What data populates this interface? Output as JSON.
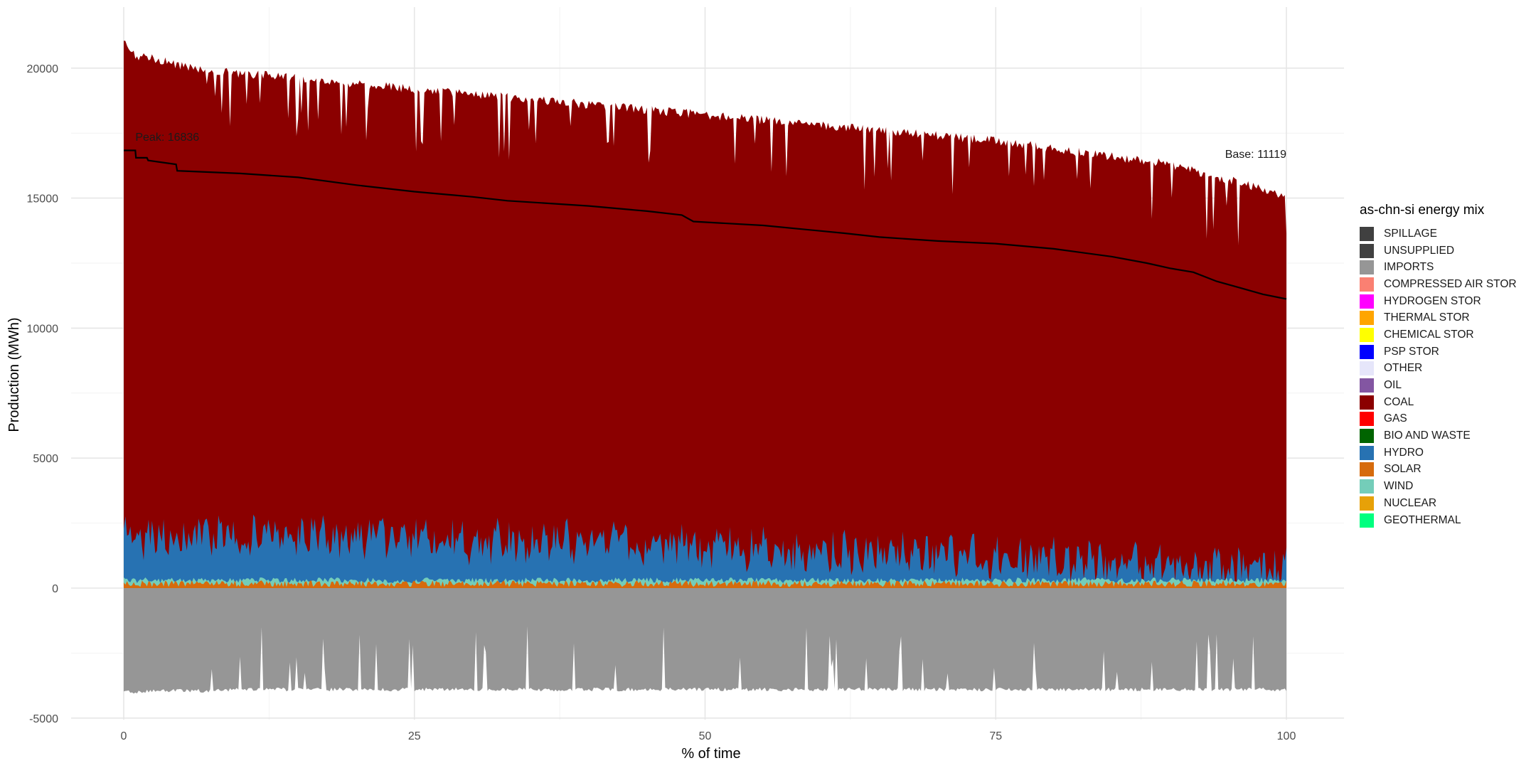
{
  "chart_data": {
    "type": "area",
    "title": "",
    "xlabel": "% of time",
    "ylabel": "Production (MWh)",
    "xlim": [
      0,
      100
    ],
    "ylim": [
      -5000,
      21500
    ],
    "x_ticks": [
      0,
      25,
      50,
      75,
      100
    ],
    "y_ticks": [
      -5000,
      0,
      5000,
      10000,
      15000,
      20000
    ],
    "grid": true,
    "legend_position": "right",
    "legend_title": "as-chn-si energy mix",
    "legend": [
      {
        "name": "SPILLAGE",
        "color": "#404040"
      },
      {
        "name": "UNSUPPLIED",
        "color": "#404040"
      },
      {
        "name": "IMPORTS",
        "color": "#969696"
      },
      {
        "name": "COMPRESSED AIR STOR",
        "color": "#FA8072"
      },
      {
        "name": "HYDROGEN STOR",
        "color": "#FF00FF"
      },
      {
        "name": "THERMAL STOR",
        "color": "#FFA500"
      },
      {
        "name": "CHEMICAL STOR",
        "color": "#FFFF00"
      },
      {
        "name": "PSP STOR",
        "color": "#0000FF"
      },
      {
        "name": "OTHER",
        "color": "#E6E6FA"
      },
      {
        "name": "OIL",
        "color": "#8356A2"
      },
      {
        "name": "COAL",
        "color": "#8B0000"
      },
      {
        "name": "GAS",
        "color": "#FF0000"
      },
      {
        "name": "BIO AND WASTE",
        "color": "#006400"
      },
      {
        "name": "HYDRO",
        "color": "#2772B2"
      },
      {
        "name": "SOLAR",
        "color": "#D66B0D"
      },
      {
        "name": "WIND",
        "color": "#74CDB9"
      },
      {
        "name": "NUCLEAR",
        "color": "#E7A108"
      },
      {
        "name": "GEOTHERMAL",
        "color": "#00FF7F"
      }
    ],
    "load_curve": {
      "color": "#000000",
      "points": [
        [
          0,
          16836
        ],
        [
          1,
          16836
        ],
        [
          1.05,
          16550
        ],
        [
          2,
          16550
        ],
        [
          2.1,
          16450
        ],
        [
          4.5,
          16300
        ],
        [
          4.6,
          16050
        ],
        [
          10,
          15950
        ],
        [
          15,
          15800
        ],
        [
          20,
          15500
        ],
        [
          25,
          15250
        ],
        [
          30,
          15050
        ],
        [
          33,
          14900
        ],
        [
          40,
          14700
        ],
        [
          45,
          14500
        ],
        [
          48,
          14350
        ],
        [
          49,
          14100
        ],
        [
          55,
          13950
        ],
        [
          62,
          13650
        ],
        [
          65,
          13500
        ],
        [
          70,
          13350
        ],
        [
          75,
          13250
        ],
        [
          80,
          13050
        ],
        [
          85,
          12750
        ],
        [
          88,
          12500
        ],
        [
          90,
          12300
        ],
        [
          92,
          12150
        ],
        [
          94,
          11800
        ],
        [
          96,
          11550
        ],
        [
          98,
          11300
        ],
        [
          100,
          11119
        ]
      ]
    },
    "stack_envelope": {
      "x": [
        0,
        0.5,
        1,
        3,
        5,
        8,
        10,
        16,
        20,
        25,
        30,
        35,
        40,
        45,
        50,
        55,
        60,
        65,
        70,
        75,
        80,
        85,
        90,
        95,
        100
      ],
      "coal_top": [
        21000,
        20700,
        20500,
        20300,
        20100,
        19900,
        19800,
        19600,
        19400,
        19200,
        19000,
        18800,
        18600,
        18400,
        18200,
        18000,
        17800,
        17600,
        17400,
        17200,
        16900,
        16600,
        16300,
        15700,
        15100
      ],
      "hydro_top_avg": [
        2100,
        2100,
        2000,
        2000,
        1900,
        2000,
        1900,
        2000,
        1900,
        1900,
        1800,
        1800,
        1700,
        1700,
        1600,
        1500,
        1400,
        1400,
        1300,
        1200,
        1100,
        1000,
        900,
        800,
        700
      ],
      "wind_top_avg": [
        300,
        300,
        300,
        300,
        300,
        300,
        300,
        300,
        300,
        300,
        300,
        300,
        300,
        300,
        300,
        300,
        300,
        300,
        300,
        300,
        300,
        300,
        300,
        300,
        300
      ],
      "imports_bottom": [
        -4000,
        -4000,
        -4000,
        -3950,
        -3950,
        -3950,
        -3900,
        -3900,
        -3900,
        -3900,
        -3900,
        -3900,
        -3900,
        -3900,
        -3900,
        -3900,
        -3900,
        -3900,
        -3900,
        -3900,
        -3900,
        -3900,
        -3900,
        -3900,
        -3900
      ]
    },
    "annotations": [
      {
        "text": "Peak: 16836",
        "x": 1,
        "y": 17200
      },
      {
        "text": "Base: 11119",
        "x": 100,
        "y": 16550
      }
    ]
  }
}
